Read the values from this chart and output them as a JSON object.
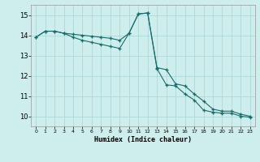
{
  "xlabel": "Humidex (Indice chaleur)",
  "background_color": "#ceeeed",
  "grid_color": "#aed8d8",
  "line_color": "#1a6b6b",
  "xlim": [
    -0.5,
    23.5
  ],
  "ylim": [
    9.5,
    15.5
  ],
  "yticks": [
    10,
    11,
    12,
    13,
    14,
    15
  ],
  "xticks": [
    0,
    1,
    2,
    3,
    4,
    5,
    6,
    7,
    8,
    9,
    10,
    11,
    12,
    13,
    14,
    15,
    16,
    17,
    18,
    19,
    20,
    21,
    22,
    23
  ],
  "series1_x": [
    0,
    1,
    2,
    3,
    4,
    5,
    6,
    7,
    8,
    9,
    10,
    11,
    12,
    13,
    14,
    15,
    16,
    17,
    18,
    19,
    20,
    21,
    22,
    23
  ],
  "series1_y": [
    13.9,
    14.2,
    14.2,
    14.1,
    14.05,
    14.0,
    13.95,
    13.9,
    13.85,
    13.75,
    14.1,
    15.05,
    15.1,
    12.4,
    12.3,
    11.6,
    11.5,
    11.1,
    10.75,
    10.35,
    10.25,
    10.25,
    10.1,
    10.0
  ],
  "series2_x": [
    0,
    1,
    2,
    3,
    4,
    5,
    6,
    7,
    8,
    9,
    10,
    11,
    12,
    13,
    14,
    15,
    16,
    17,
    18,
    19,
    20,
    21,
    22,
    23
  ],
  "series2_y": [
    13.9,
    14.2,
    14.2,
    14.1,
    13.9,
    13.75,
    13.65,
    13.55,
    13.45,
    13.35,
    14.1,
    15.05,
    15.1,
    12.35,
    11.55,
    11.5,
    11.1,
    10.8,
    10.3,
    10.2,
    10.15,
    10.15,
    10.0,
    9.95
  ]
}
